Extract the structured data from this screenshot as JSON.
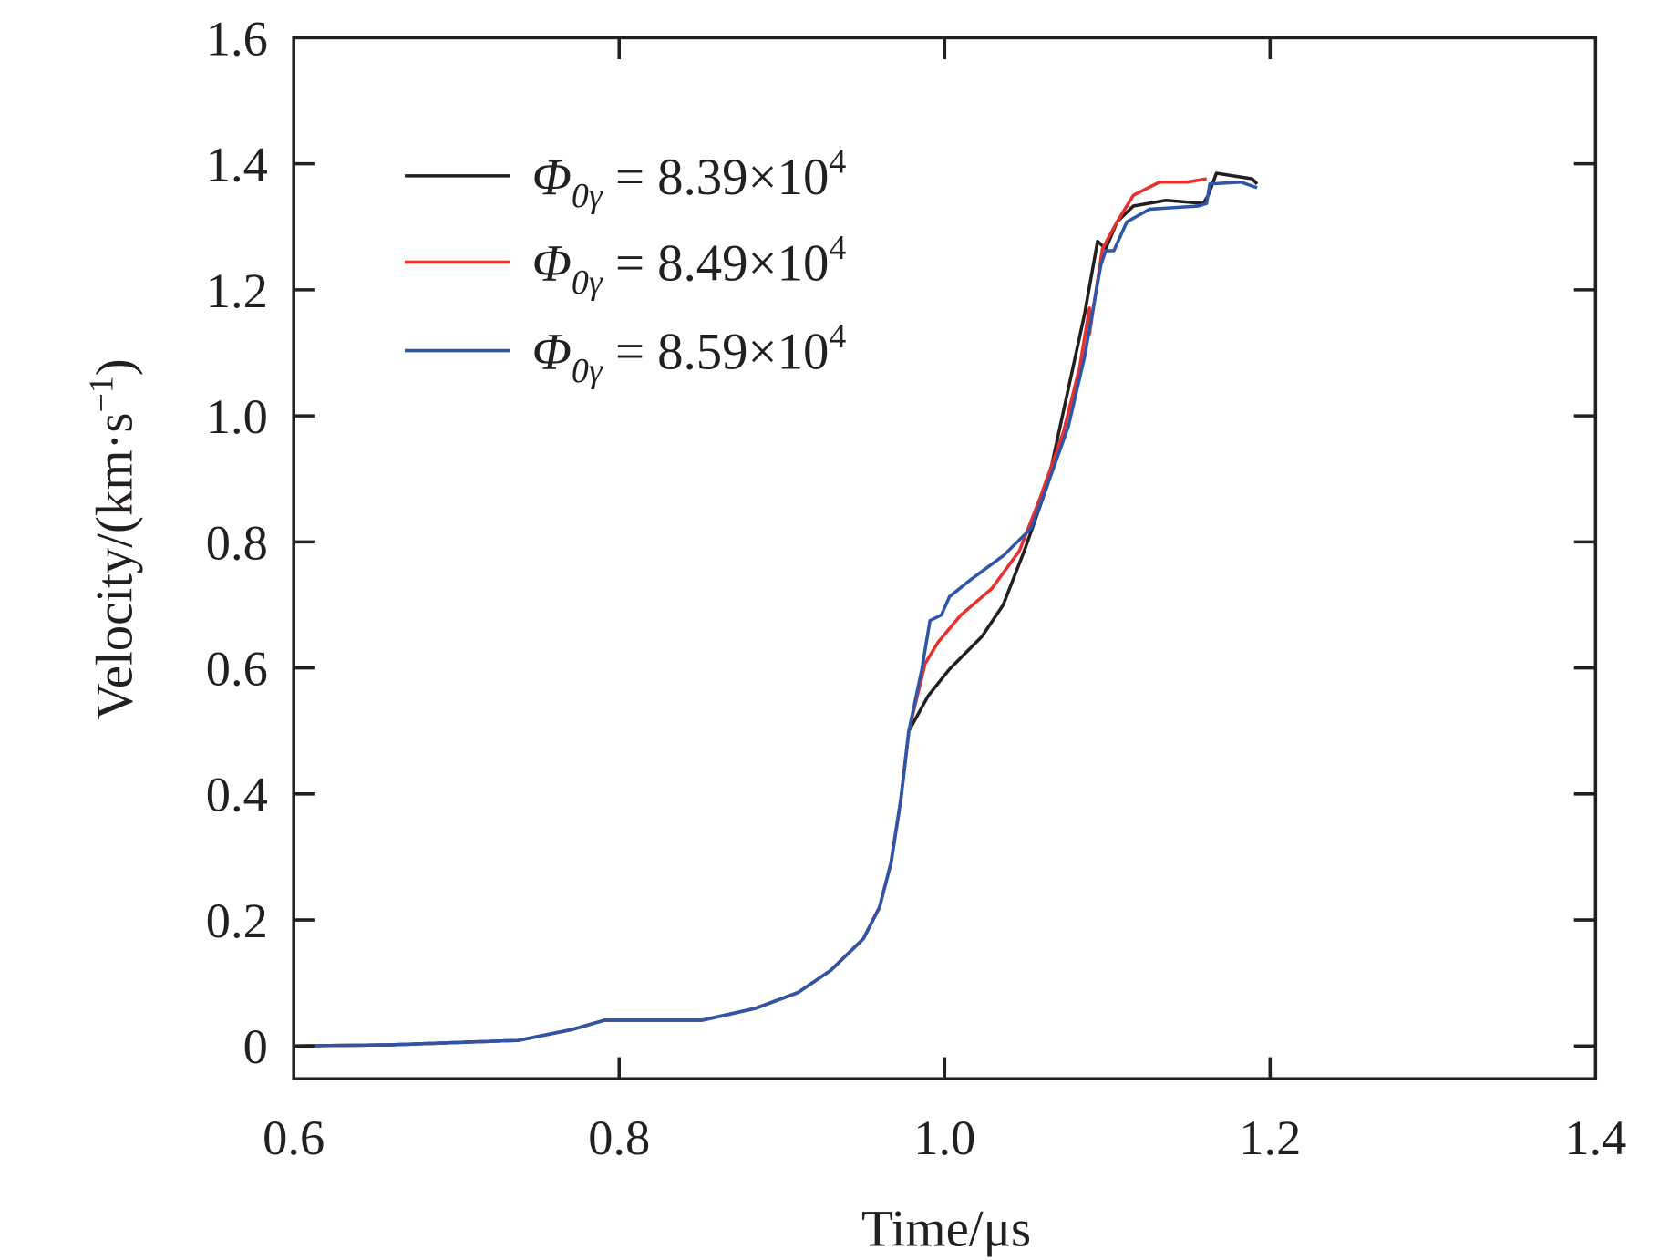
{
  "chart_data": {
    "type": "line",
    "title": "",
    "xlabel": "Time/μs",
    "ylabel": {
      "main": "Velocity/(km·s",
      "sup": "−1",
      "close": ")"
    },
    "xlim": [
      0.6,
      1.4
    ],
    "ylim": [
      -0.052,
      1.6
    ],
    "xticks": [
      0.6,
      0.8,
      1.0,
      1.2,
      1.4
    ],
    "xtick_labels": [
      "0.6",
      "0.8",
      "1.0",
      "1.2",
      "1.4"
    ],
    "yticks": [
      0,
      0.2,
      0.4,
      0.6,
      0.8,
      1.0,
      1.2,
      1.4,
      1.6
    ],
    "ytick_labels": [
      "0",
      "0.2",
      "0.4",
      "0.6",
      "0.8",
      "1.0",
      "1.2",
      "1.4",
      "1.6"
    ],
    "grid": false,
    "legend_position": "top-left",
    "common_start": [
      [
        0.6,
        0
      ],
      [
        0.66,
        0.002
      ],
      [
        0.738,
        0.009
      ],
      [
        0.771,
        0.026
      ],
      [
        0.791,
        0.041
      ],
      [
        0.851,
        0.041
      ],
      [
        0.884,
        0.06
      ],
      [
        0.91,
        0.085
      ],
      [
        0.93,
        0.12
      ],
      [
        0.95,
        0.17
      ],
      [
        0.96,
        0.22
      ],
      [
        0.967,
        0.29
      ],
      [
        0.973,
        0.39
      ],
      [
        0.978,
        0.5
      ]
    ],
    "series": [
      {
        "name": "Φ0γ = 8.39×10^4",
        "symbol": "Φ",
        "sub": "0γ",
        "value": " = 8.39×10",
        "exp": "4",
        "color": "#231f20",
        "points": [
          [
            0.99,
            0.556
          ],
          [
            1.003,
            0.598
          ],
          [
            1.023,
            0.65
          ],
          [
            1.036,
            0.7
          ],
          [
            1.049,
            0.786
          ],
          [
            1.063,
            0.889
          ],
          [
            1.076,
            1.043
          ],
          [
            1.086,
            1.162
          ],
          [
            1.094,
            1.277
          ],
          [
            1.099,
            1.265
          ],
          [
            1.106,
            1.308
          ],
          [
            1.116,
            1.333
          ],
          [
            1.136,
            1.342
          ],
          [
            1.159,
            1.337
          ],
          [
            1.162,
            1.35
          ],
          [
            1.167,
            1.385
          ],
          [
            1.189,
            1.376
          ],
          [
            1.192,
            1.368
          ]
        ]
      },
      {
        "name": "Φ0γ = 8.49×10^4",
        "symbol": "Φ",
        "sub": "0γ",
        "value": " = 8.49×10",
        "exp": "4",
        "color": "#e8312f",
        "points": [
          [
            0.988,
            0.607
          ],
          [
            0.996,
            0.641
          ],
          [
            1.01,
            0.684
          ],
          [
            1.029,
            0.726
          ],
          [
            1.046,
            0.786
          ],
          [
            1.059,
            0.872
          ],
          [
            1.073,
            0.974
          ],
          [
            1.083,
            1.077
          ],
          [
            1.089,
            1.171
          ],
          [
            1.089,
            1.13
          ],
          [
            1.097,
            1.265
          ],
          [
            1.106,
            1.308
          ],
          [
            1.116,
            1.35
          ],
          [
            1.132,
            1.371
          ],
          [
            1.149,
            1.371
          ],
          [
            1.161,
            1.376
          ]
        ]
      },
      {
        "name": "Φ0γ = 8.59×10^4",
        "symbol": "Φ",
        "sub": "0γ",
        "value": " = 8.59×10",
        "exp": "4",
        "color": "#2e56a8",
        "points": [
          [
            0.986,
            0.598
          ],
          [
            0.991,
            0.675
          ],
          [
            0.998,
            0.684
          ],
          [
            1.003,
            0.713
          ],
          [
            1.016,
            0.74
          ],
          [
            1.036,
            0.778
          ],
          [
            1.053,
            0.821
          ],
          [
            1.063,
            0.889
          ],
          [
            1.076,
            0.983
          ],
          [
            1.086,
            1.094
          ],
          [
            1.096,
            1.239
          ],
          [
            1.099,
            1.262
          ],
          [
            1.104,
            1.262
          ],
          [
            1.112,
            1.308
          ],
          [
            1.126,
            1.328
          ],
          [
            1.156,
            1.333
          ],
          [
            1.161,
            1.337
          ],
          [
            1.163,
            1.368
          ],
          [
            1.182,
            1.371
          ],
          [
            1.192,
            1.362
          ]
        ]
      }
    ]
  }
}
